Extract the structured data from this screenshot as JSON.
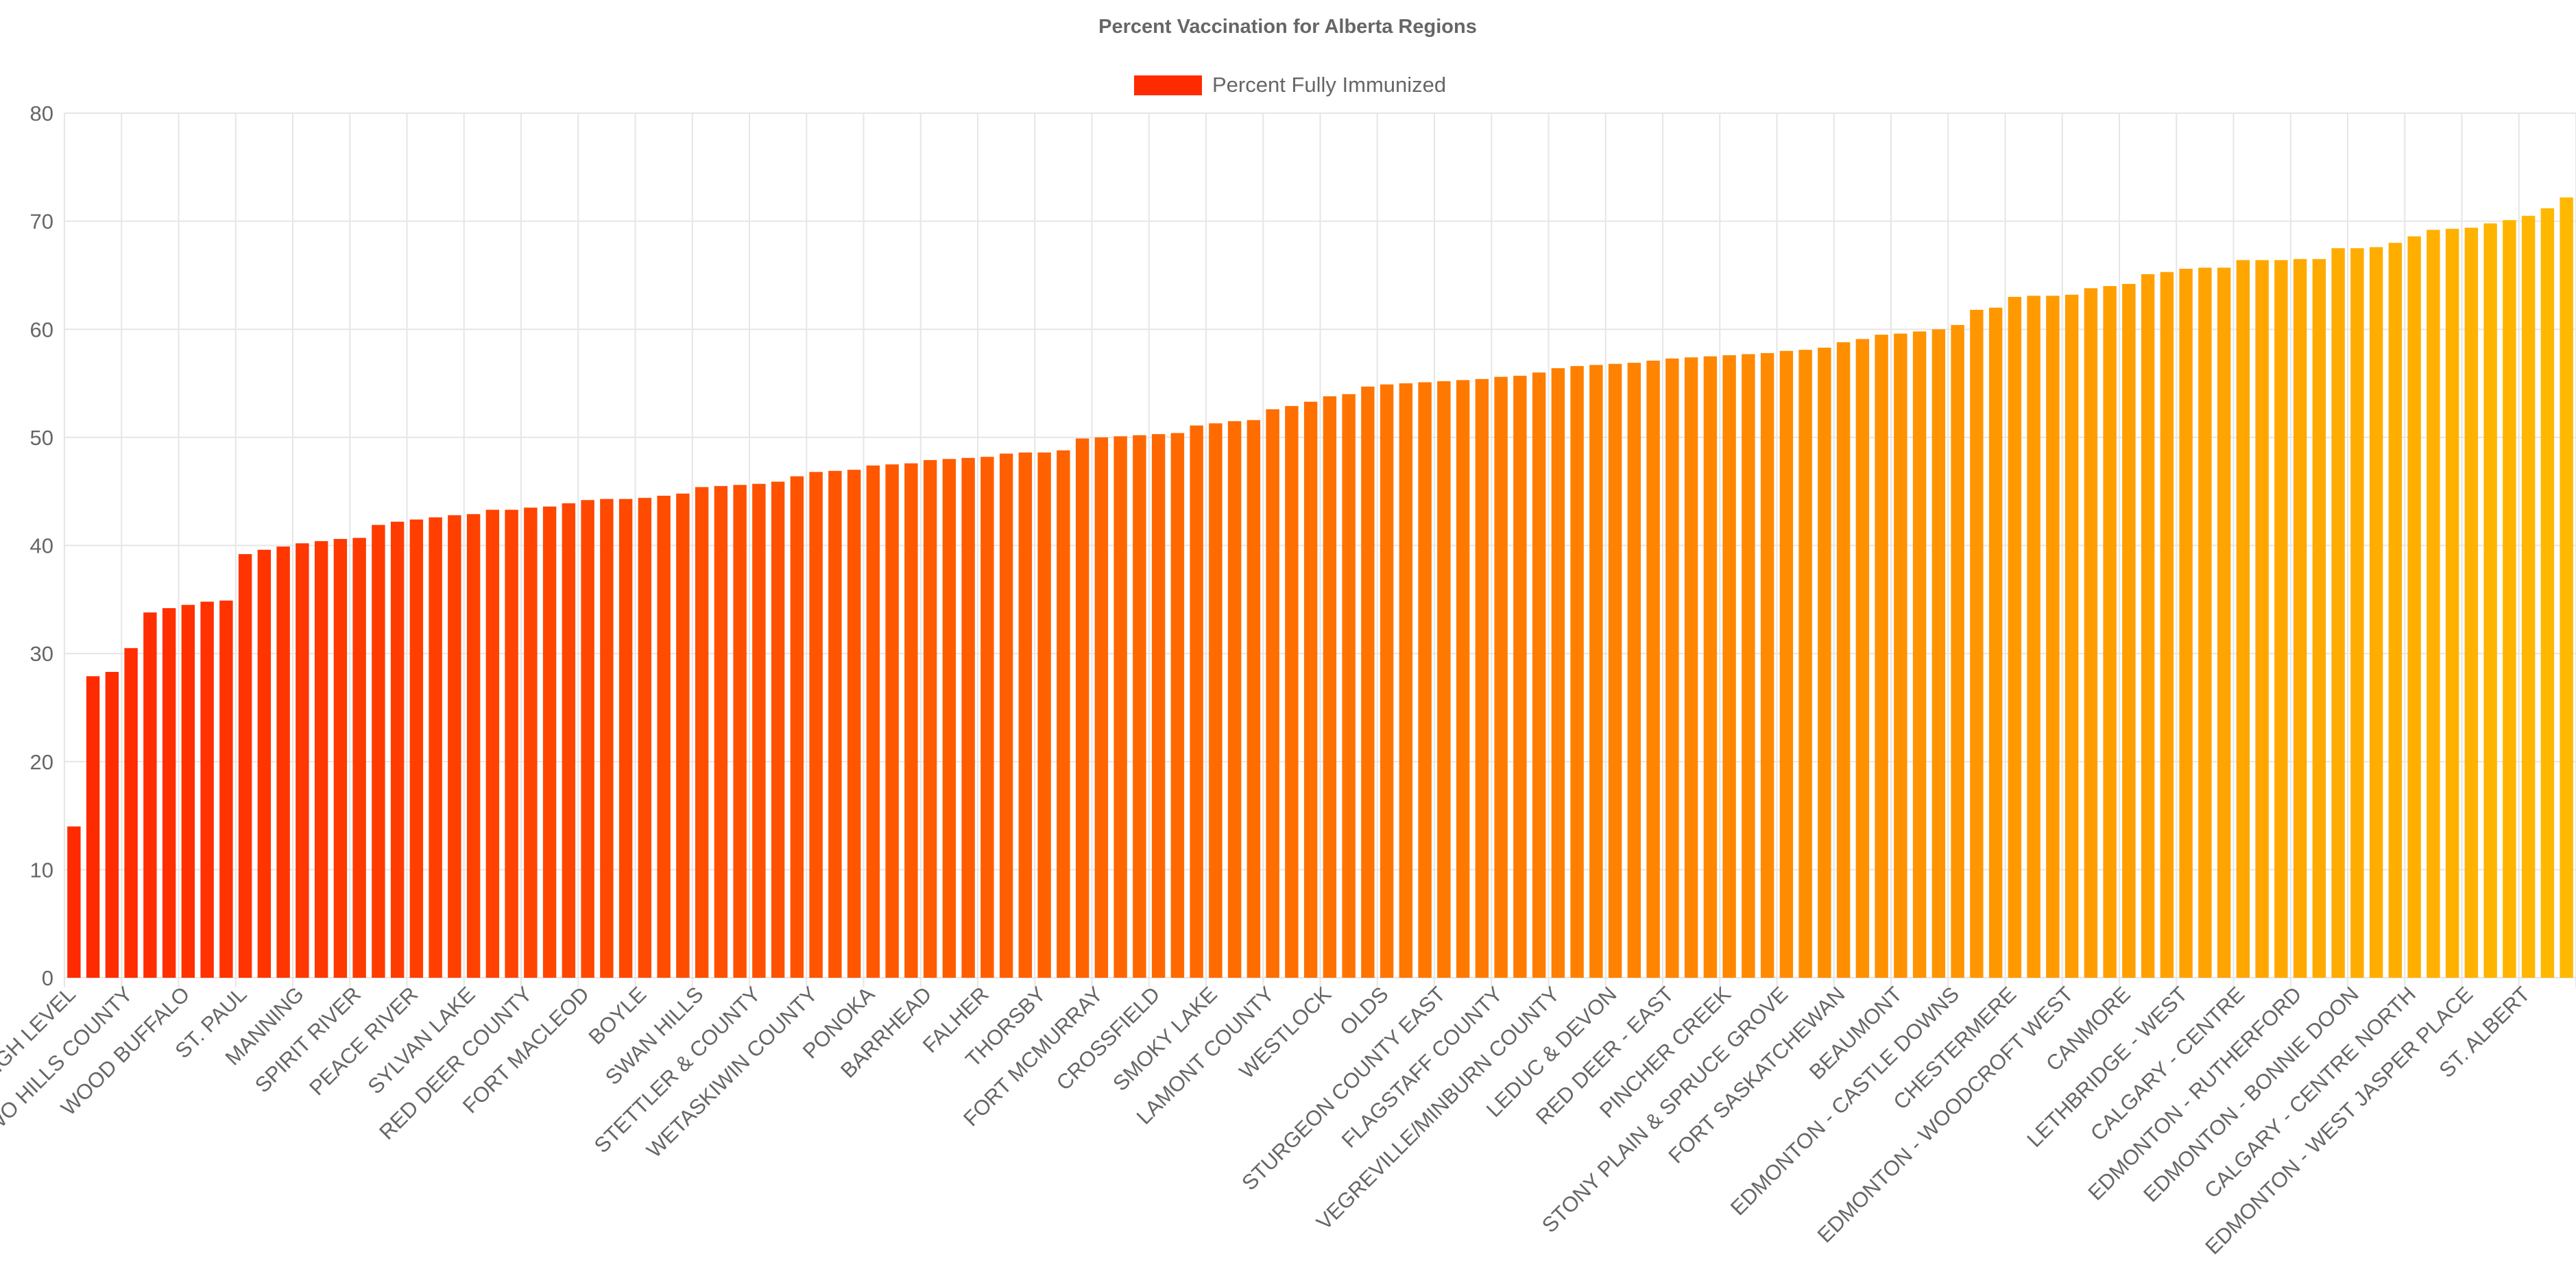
{
  "chart_data": {
    "type": "bar",
    "title": "Percent Vaccination for Alberta Regions",
    "legend": {
      "position": "top-center",
      "label": "Percent Fully Immunized"
    },
    "xlabel": "",
    "ylabel": "",
    "ylim": [
      0,
      80
    ],
    "y_ticks": [
      0,
      10,
      20,
      30,
      40,
      50,
      60,
      70,
      80
    ],
    "grid": true,
    "colors": {
      "start": "#ff2a00",
      "end": "#ffb800",
      "grid": "#e6e6e6",
      "text": "#666666"
    },
    "x_tick_labels": [
      "HIGH LEVEL",
      "TWO HILLS COUNTY",
      "WOOD BUFFALO",
      "ST. PAUL",
      "MANNING",
      "SPIRIT RIVER",
      "PEACE RIVER",
      "SYLVAN LAKE",
      "RED DEER COUNTY",
      "FORT MACLEOD",
      "BOYLE",
      "SWAN HILLS",
      "STETTLER & COUNTY",
      "WETASKIWIN COUNTY",
      "PONOKA",
      "BARRHEAD",
      "FALHER",
      "THORSBY",
      "FORT MCMURRAY",
      "CROSSFIELD",
      "SMOKY LAKE",
      "LAMONT COUNTY",
      "WESTLOCK",
      "OLDS",
      "STURGEON COUNTY EAST",
      "FLAGSTAFF COUNTY",
      "VEGREVILLE/MINBURN COUNTY",
      "LEDUC & DEVON",
      "RED DEER - EAST",
      "PINCHER CREEK",
      "STONY PLAIN & SPRUCE GROVE",
      "FORT SASKATCHEWAN",
      "BEAUMONT",
      "EDMONTON - CASTLE DOWNS",
      "CHESTERMERE",
      "EDMONTON - WOODCROFT WEST",
      "CANMORE",
      "LETHBRIDGE - WEST",
      "CALGARY - CENTRE",
      "EDMONTON - RUTHERFORD",
      "EDMONTON - BONNIE DOON",
      "CALGARY - CENTRE NORTH",
      "EDMONTON - WEST JASPER PLACE",
      "ST. ALBERT"
    ],
    "label_every": 3,
    "values": [
      14.0,
      27.9,
      28.3,
      30.5,
      33.8,
      34.2,
      34.5,
      34.8,
      34.9,
      39.2,
      39.6,
      39.9,
      40.2,
      40.4,
      40.6,
      40.7,
      41.9,
      42.2,
      42.4,
      42.6,
      42.8,
      42.9,
      43.3,
      43.3,
      43.5,
      43.6,
      43.9,
      44.2,
      44.3,
      44.3,
      44.4,
      44.6,
      44.8,
      45.4,
      45.5,
      45.6,
      45.7,
      45.9,
      46.4,
      46.8,
      46.9,
      47.0,
      47.4,
      47.5,
      47.6,
      47.9,
      48.0,
      48.1,
      48.2,
      48.5,
      48.6,
      48.6,
      48.8,
      49.9,
      50.0,
      50.1,
      50.2,
      50.3,
      50.4,
      51.1,
      51.3,
      51.5,
      51.6,
      52.6,
      52.9,
      53.3,
      53.8,
      54.0,
      54.7,
      54.9,
      55.0,
      55.1,
      55.2,
      55.3,
      55.4,
      55.6,
      55.7,
      56.0,
      56.4,
      56.6,
      56.7,
      56.8,
      56.9,
      57.1,
      57.3,
      57.4,
      57.5,
      57.6,
      57.7,
      57.8,
      58.0,
      58.1,
      58.3,
      58.8,
      59.1,
      59.5,
      59.6,
      59.8,
      60.0,
      60.4,
      61.8,
      62.0,
      63.0,
      63.1,
      63.1,
      63.2,
      63.8,
      64.0,
      64.2,
      65.1,
      65.3,
      65.6,
      65.7,
      65.7,
      66.4,
      66.4,
      66.4,
      66.5,
      66.5,
      67.5,
      67.5,
      67.6,
      68.0,
      68.6,
      69.2,
      69.3,
      69.4,
      69.8,
      70.1,
      70.5,
      71.2,
      72.2
    ]
  }
}
